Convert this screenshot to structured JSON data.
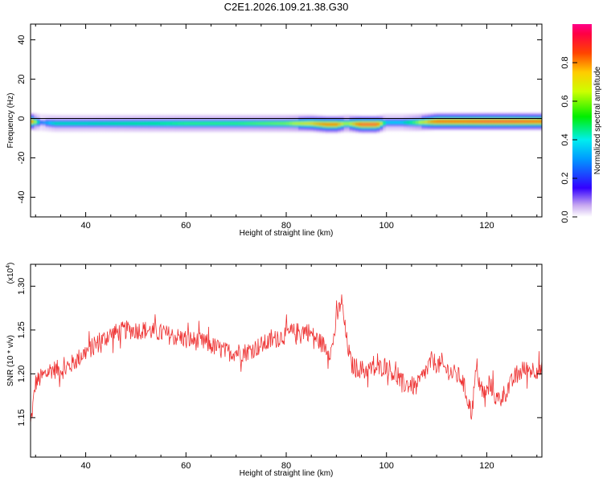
{
  "title": "C2E1.2026.109.21.38.G30",
  "chart_data": [
    {
      "type": "heatmap",
      "xlabel": "Height of straight line (km)",
      "ylabel": "Frequency (Hz)",
      "xlim": [
        29,
        131
      ],
      "ylim": [
        -50,
        48
      ],
      "xticks": [
        40,
        60,
        80,
        100,
        120
      ],
      "yticks": [
        40,
        20,
        0,
        -20,
        -40
      ],
      "xtick_labels": [
        "40",
        "60",
        "80",
        "100",
        "120"
      ],
      "ytick_labels": [
        "40",
        "20",
        "0",
        "-20",
        "-40"
      ],
      "colorbar": {
        "label": "Normalized spectral amplitude",
        "range": [
          0,
          1
        ],
        "ticks": [
          0.0,
          0.2,
          0.4,
          0.6,
          0.8
        ],
        "tick_labels": [
          "0.0",
          "0.2",
          "0.4",
          "0.6",
          "0.8"
        ]
      },
      "ridge": {
        "x": [
          29,
          31,
          34,
          40,
          50,
          60,
          70,
          80,
          85,
          88,
          90,
          92,
          95,
          98,
          100,
          103,
          106,
          110,
          115,
          120,
          125,
          130
        ],
        "freq": [
          -1.5,
          -2,
          -2.5,
          -2.5,
          -2.5,
          -2.5,
          -2.5,
          -2.5,
          -2.5,
          -3,
          -3,
          -2.5,
          -3,
          -3,
          -2,
          -2,
          -2,
          -1.5,
          -1.5,
          -1.5,
          -1.5,
          -1.5
        ],
        "peak_amplitude": [
          0.9,
          0.3,
          0.45,
          0.45,
          0.5,
          0.55,
          0.55,
          0.6,
          0.75,
          0.85,
          0.85,
          0.6,
          0.95,
          0.95,
          0.4,
          0.4,
          0.6,
          0.9,
          0.9,
          0.95,
          0.95,
          0.9
        ]
      }
    },
    {
      "type": "line",
      "xlabel": "Height of straight line (km)",
      "ylabel": "SNR (10 * v/v)",
      "scale_note": "(x10",
      "scale_exp": "4",
      "scale_close": ")",
      "color": "#ee3333",
      "xlim": [
        29,
        131
      ],
      "ylim": [
        1.105,
        1.325
      ],
      "xticks": [
        40,
        60,
        80,
        100,
        120
      ],
      "yticks": [
        1.15,
        1.2,
        1.25,
        1.3
      ],
      "xtick_labels": [
        "40",
        "60",
        "80",
        "100",
        "120"
      ],
      "ytick_labels": [
        "1.15",
        "1.20",
        "1.25",
        "1.30"
      ],
      "trend": {
        "x": [
          29,
          30,
          33,
          36,
          40,
          45,
          48,
          52,
          56,
          60,
          64,
          68,
          72,
          76,
          80,
          84,
          87,
          89,
          90,
          91,
          92,
          93,
          95,
          98,
          100,
          103,
          106,
          109,
          112,
          115,
          117,
          118,
          119,
          121,
          122,
          124,
          126,
          128,
          131
        ],
        "y": [
          1.14,
          1.19,
          1.205,
          1.205,
          1.225,
          1.245,
          1.25,
          1.25,
          1.245,
          1.24,
          1.235,
          1.225,
          1.225,
          1.235,
          1.245,
          1.25,
          1.235,
          1.225,
          1.26,
          1.285,
          1.24,
          1.21,
          1.205,
          1.205,
          1.21,
          1.19,
          1.185,
          1.215,
          1.205,
          1.195,
          1.155,
          1.21,
          1.175,
          1.185,
          1.17,
          1.18,
          1.2,
          1.205,
          1.205
        ]
      },
      "noise_amplitude": 0.011,
      "samples": 900
    }
  ]
}
